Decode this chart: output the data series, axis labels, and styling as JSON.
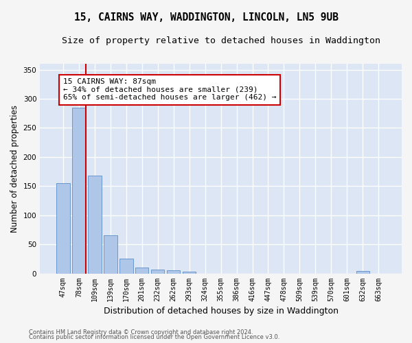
{
  "title": "15, CAIRNS WAY, WADDINGTON, LINCOLN, LN5 9UB",
  "subtitle": "Size of property relative to detached houses in Waddington",
  "xlabel": "Distribution of detached houses by size in Waddington",
  "ylabel": "Number of detached properties",
  "bar_labels": [
    "47sqm",
    "78sqm",
    "109sqm",
    "139sqm",
    "170sqm",
    "201sqm",
    "232sqm",
    "262sqm",
    "293sqm",
    "324sqm",
    "355sqm",
    "386sqm",
    "416sqm",
    "447sqm",
    "478sqm",
    "509sqm",
    "539sqm",
    "570sqm",
    "601sqm",
    "632sqm",
    "663sqm"
  ],
  "bar_values": [
    155,
    285,
    168,
    65,
    25,
    10,
    7,
    5,
    3,
    0,
    0,
    0,
    0,
    0,
    0,
    0,
    0,
    0,
    0,
    4,
    0
  ],
  "bar_color": "#aec6e8",
  "bar_edge_color": "#5b8dc8",
  "vline_x_index": 1,
  "vline_color": "#cc0000",
  "annotation_line1": "15 CAIRNS WAY: 87sqm",
  "annotation_line2": "← 34% of detached houses are smaller (239)",
  "annotation_line3": "65% of semi-detached houses are larger (462) →",
  "annotation_box_color": "#ffffff",
  "annotation_box_edge": "#cc0000",
  "ylim": [
    0,
    360
  ],
  "yticks": [
    0,
    50,
    100,
    150,
    200,
    250,
    300,
    350
  ],
  "background_color": "#dce6f5",
  "grid_color": "#ffffff",
  "footer_line1": "Contains HM Land Registry data © Crown copyright and database right 2024.",
  "footer_line2": "Contains public sector information licensed under the Open Government Licence v3.0.",
  "title_fontsize": 10.5,
  "subtitle_fontsize": 9.5,
  "annotation_fontsize": 8,
  "tick_fontsize": 7,
  "ylabel_fontsize": 8.5,
  "xlabel_fontsize": 9,
  "footer_fontsize": 6
}
